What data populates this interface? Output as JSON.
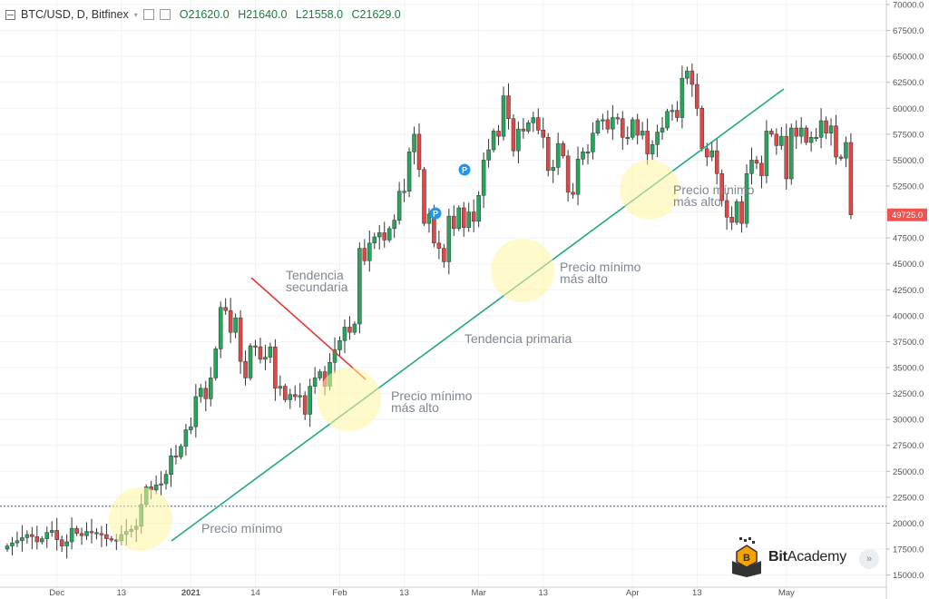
{
  "header": {
    "symbol": "BTC/USD, D, Bitfinex",
    "open": "O21620.0",
    "high": "H21640.0",
    "low": "L21558.0",
    "close": "C21629.0"
  },
  "annotations": {
    "secondary_line1": "Tendencia",
    "secondary_line2": "secundaria",
    "primary": "Tendencia primaria",
    "higher_low1_line1": "Precio mínimo",
    "higher_low1_line2": "más alto",
    "higher_low2_line1": "Precio mínimo",
    "higher_low2_line2": "más alto",
    "higher_low3_line1": "Precio mínimo",
    "higher_low3_line2": "más alto",
    "lowest": "Precio mínimo"
  },
  "logo": {
    "bold": "Bit",
    "regular": "Academy"
  },
  "nav": {
    "scroll_right": "»"
  },
  "chart_data": {
    "type": "candlestick",
    "symbol": "BTC/USD",
    "interval": "D",
    "exchange": "Bitfinex",
    "ylim": [
      14000,
      70000
    ],
    "y_ticks": [
      15000,
      17500,
      20000,
      22500,
      25000,
      27500,
      30000,
      32500,
      35000,
      37500,
      40000,
      42500,
      45000,
      47500,
      50000,
      52500,
      55000,
      57500,
      60000,
      62500,
      65000,
      67500,
      70000
    ],
    "y_tick_labels": [
      "15000.0",
      "17500.0",
      "20000.0",
      "22500.0",
      "25000.0",
      "27500.0",
      "30000.0",
      "32500.0",
      "35000.0",
      "37500.0",
      "40000.0",
      "42500.0",
      "45000.0",
      "47500.0",
      "50000.0",
      "52500.0",
      "55000.0",
      "57500.0",
      "60000.0",
      "62500.0",
      "65000.0",
      "67500.0",
      "70000.0"
    ],
    "last_price_label": "49725.0",
    "last_price": 49725,
    "dotted_level": 21629,
    "x_tick_labels": [
      "Dec",
      "13",
      "2021",
      "14",
      "Feb",
      "13",
      "Mar",
      "13",
      "Apr",
      "13",
      "May"
    ],
    "x_tick_index": [
      10,
      23,
      37,
      50,
      67,
      80,
      95,
      108,
      126,
      139,
      157
    ],
    "closes": [
      17800,
      18100,
      18300,
      18600,
      18900,
      18700,
      18200,
      18500,
      19100,
      19300,
      18400,
      17800,
      18200,
      19500,
      19000,
      18800,
      19200,
      19100,
      19000,
      18900,
      18500,
      18400,
      18300,
      18900,
      19200,
      19400,
      19700,
      21800,
      23500,
      23200,
      23700,
      23800,
      24700,
      26500,
      26400,
      27400,
      29000,
      29300,
      32200,
      33000,
      32000,
      34000,
      36800,
      40800,
      40500,
      38400,
      39800,
      35600,
      34000,
      37100,
      37000,
      35800,
      36000,
      37000,
      33000,
      33200,
      31900,
      32400,
      32200,
      32300,
      30500,
      33200,
      34000,
      34600,
      33200,
      35500,
      36700,
      37600,
      38900,
      38400,
      39200,
      46500,
      45300,
      47000,
      47600,
      48000,
      47300,
      48400,
      49200,
      52000,
      52000,
      55800,
      57500,
      54100,
      48900,
      49800,
      47000,
      46500,
      45200,
      49600,
      48400,
      50400,
      48500,
      50000,
      49100,
      51600,
      55000,
      56000,
      57800,
      57300,
      61200,
      59000,
      55900,
      58000,
      57800,
      58600,
      59100,
      57900,
      57200,
      54000,
      54300,
      56600,
      55400,
      51900,
      51700,
      55100,
      55800,
      55800,
      57600,
      58800,
      58900,
      58000,
      59100,
      59000,
      57200,
      57200,
      58900,
      57400,
      57800,
      55600,
      56500,
      57700,
      58100,
      59700,
      59800,
      59100,
      62900,
      63600,
      62300,
      60000,
      56100,
      55300,
      55900,
      53700,
      51100,
      49500,
      49000,
      51000,
      48900,
      53700,
      55000,
      54700,
      53500,
      57800,
      57500,
      56400,
      57300,
      53200,
      58100,
      57300,
      58100,
      56700,
      57200,
      57200,
      58800,
      57600,
      58300,
      55300,
      55200,
      56700,
      49725
    ]
  }
}
